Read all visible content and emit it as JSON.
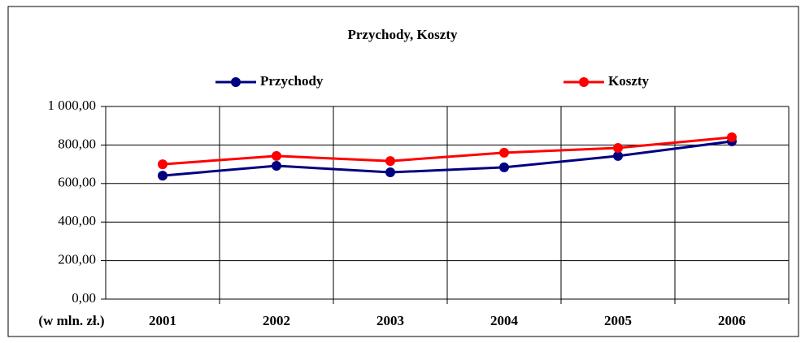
{
  "chart_data": {
    "type": "line",
    "title": "Przychody, Koszty",
    "x_label": "(w mln. zł.)",
    "categories": [
      "2001",
      "2002",
      "2003",
      "2004",
      "2005",
      "2006"
    ],
    "series": [
      {
        "name": "Przychody",
        "color": "#000080",
        "values": [
          641,
          692,
          658,
          684,
          743,
          819
        ]
      },
      {
        "name": "Koszty",
        "color": "#ff0000",
        "values": [
          700,
          743,
          717,
          760,
          785,
          840
        ]
      }
    ],
    "ylim": [
      0,
      1000
    ],
    "yticks": [
      {
        "value": 0,
        "label": "0,00"
      },
      {
        "value": 200,
        "label": "200,00"
      },
      {
        "value": 400,
        "label": "400,00"
      },
      {
        "value": 600,
        "label": "600,00"
      },
      {
        "value": 800,
        "label": "800,00"
      },
      {
        "value": 1000,
        "label": "1 000,00"
      }
    ],
    "grid": true
  }
}
